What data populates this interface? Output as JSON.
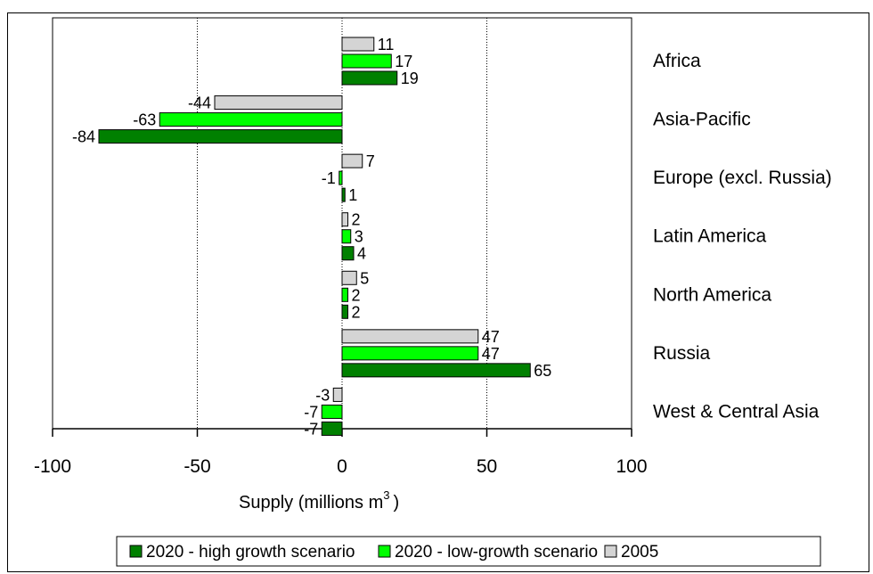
{
  "chart_data": {
    "type": "bar",
    "orientation": "horizontal",
    "xlabel": "Supply (millions m",
    "xlabel_superscript": "3",
    "xlabel_suffix": ")",
    "xlim": [
      -100,
      100
    ],
    "xticks": [
      -100,
      -50,
      0,
      50,
      100
    ],
    "grid": "vertical-dotted",
    "legend_position": "bottom",
    "categories": [
      "Africa",
      "Asia-Pacific",
      "Europe (excl. Russia)",
      "Latin America",
      "North America",
      "Russia",
      "West & Central Asia"
    ],
    "series": [
      {
        "name": "2005",
        "color": "#d4d4d4",
        "values": [
          11,
          -44,
          7,
          2,
          5,
          47,
          -3
        ],
        "labels": [
          "11",
          "-44",
          "7",
          "2",
          "5",
          "47",
          "-3"
        ]
      },
      {
        "name": "2020 - low-growth scenario",
        "color": "#00ff00",
        "values": [
          17,
          -63,
          -1,
          3,
          2,
          47,
          -7
        ],
        "labels": [
          "17",
          "-63",
          "-1",
          "3",
          "2",
          "47",
          "-7"
        ]
      },
      {
        "name": "2020 - high growth scenario",
        "color": "#008000",
        "values": [
          19,
          -84,
          1,
          4,
          2,
          65,
          -7
        ],
        "labels": [
          "19",
          "-84",
          "1",
          "4",
          "2",
          "65",
          "-7"
        ]
      }
    ],
    "legend_order": [
      "2020 - high growth scenario",
      "2020 - low-growth scenario",
      "2005"
    ]
  }
}
